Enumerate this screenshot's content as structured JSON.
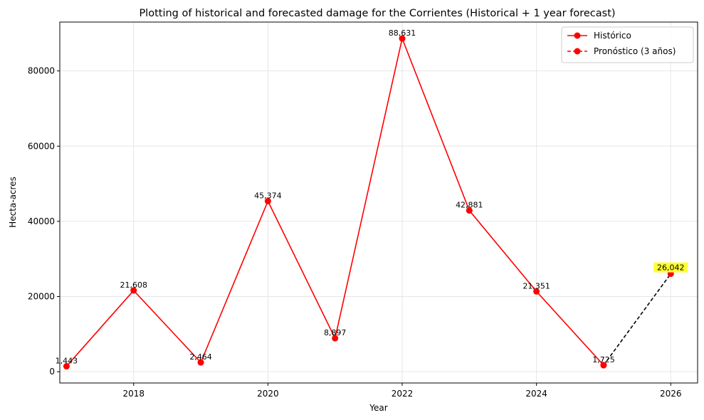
{
  "chart_data": {
    "type": "line",
    "title": "Plotting of historical and forecasted damage for the Corrientes (Historical + 1 year forecast)",
    "xlabel": "Year",
    "ylabel": "Hecta-acres",
    "xlim": [
      2016.9,
      2026.4
    ],
    "ylim": [
      -3000,
      93000
    ],
    "xticks": [
      2018,
      2020,
      2022,
      2024,
      2026
    ],
    "yticks": [
      0,
      20000,
      40000,
      60000,
      80000
    ],
    "grid": true,
    "legend_position": "top-right",
    "series": [
      {
        "name": "Histórico",
        "style": "solid",
        "color": "#ff0000",
        "x": [
          2017,
          2018,
          2019,
          2020,
          2021,
          2022,
          2023,
          2024,
          2025
        ],
        "values": [
          1443,
          21608,
          2464,
          45374,
          8897,
          88631,
          42881,
          21351,
          1725
        ],
        "labels": [
          "1,443",
          "21,608",
          "2,464",
          "45,374",
          "8,897",
          "88,631",
          "42,881",
          "21,351",
          "1,725"
        ]
      },
      {
        "name": "Pronóstico (3 años)",
        "style": "dashed",
        "color": "#000000",
        "marker_color": "#ff0000",
        "x": [
          2025,
          2026
        ],
        "values": [
          1725,
          26042
        ],
        "labels": [
          "26,042"
        ],
        "label_highlight": "#ffff33"
      }
    ]
  }
}
